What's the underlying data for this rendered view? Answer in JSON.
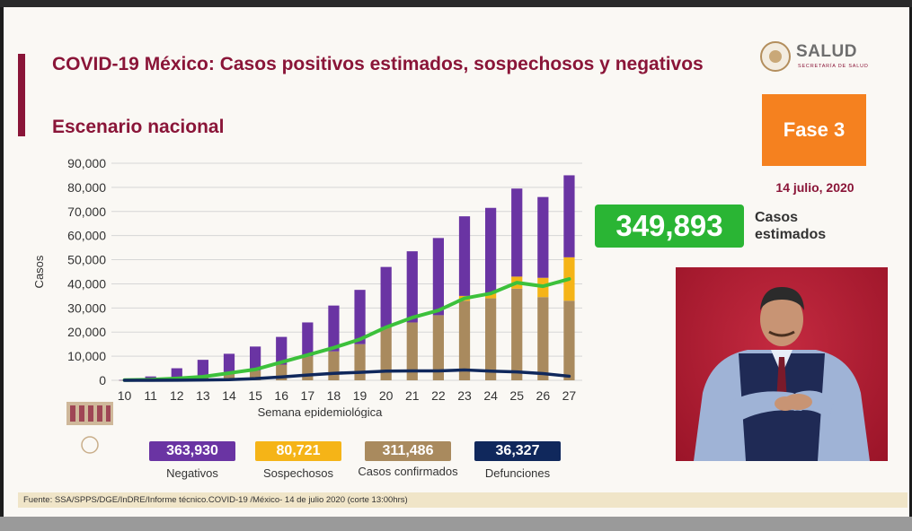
{
  "slide": {
    "title": "COVID-19 México: Casos positivos estimados, sospechosos y negativos",
    "subtitle": "Escenario nacional",
    "logo_text": "SALUD",
    "logo_subtext": "SECRETARÍA DE SALUD",
    "phase": "Fase 3",
    "date": "14 julio, 2020",
    "estimated_value": "349,893",
    "estimated_label": "Casos estimados",
    "source": "Fuente: SSA/SPPS/DGE/InDRE/Informe técnico.COVID-19 /México- 14 de julio 2020 (corte 13:00hrs)"
  },
  "summary": [
    {
      "value": "363,930",
      "label": "Negativos",
      "color": "#6a34a3"
    },
    {
      "value": "80,721",
      "label": "Sospechosos",
      "color": "#f5b417"
    },
    {
      "value": "311,486",
      "label": "Casos confirmados",
      "color": "#a98a5e"
    },
    {
      "value": "36,327",
      "label": "Defunciones",
      "color": "#10285c"
    }
  ],
  "colors": {
    "accent": "#8a1538",
    "phase": "#f5811f",
    "estimated": "#2ab534",
    "negativos": "#6a34a3",
    "sospechosos": "#f5b417",
    "confirmados": "#a98a5e",
    "defunciones": "#10285c",
    "estimados_line": "#3cc13b"
  },
  "chart_data": {
    "type": "bar",
    "stacked": true,
    "xlabel": "Semana epidemiológica",
    "ylabel": "Casos",
    "ylim": [
      0,
      90000
    ],
    "yticks": [
      0,
      10000,
      20000,
      30000,
      40000,
      50000,
      60000,
      70000,
      80000,
      90000
    ],
    "ytick_labels": [
      "0",
      "10,000",
      "20,000",
      "30,000",
      "40,000",
      "50,000",
      "60,000",
      "70,000",
      "80,000",
      "90,000"
    ],
    "grid": true,
    "categories": [
      "10",
      "11",
      "12",
      "13",
      "14",
      "15",
      "16",
      "17",
      "18",
      "19",
      "20",
      "21",
      "22",
      "23",
      "24",
      "25",
      "26",
      "27"
    ],
    "series": [
      {
        "name": "Casos confirmados",
        "values": [
          30,
          300,
          800,
          2000,
          3500,
          4000,
          6500,
          10000,
          12000,
          15000,
          22000,
          24000,
          27000,
          33000,
          34000,
          38000,
          34500,
          33000
        ]
      },
      {
        "name": "Sospechosos",
        "values": [
          0,
          0,
          0,
          0,
          0,
          0,
          0,
          0,
          0,
          0,
          0,
          0,
          0,
          2000,
          2000,
          5000,
          8000,
          18000
        ]
      },
      {
        "name": "Negativos",
        "values": [
          100,
          1300,
          4200,
          6500,
          7500,
          10000,
          11500,
          14000,
          19000,
          22500,
          25000,
          29500,
          32000,
          33000,
          35500,
          36500,
          33500,
          34000
        ]
      }
    ],
    "lines": [
      {
        "name": "Casos estimados",
        "values": [
          100,
          300,
          800,
          1500,
          3000,
          4500,
          7500,
          10500,
          13500,
          17000,
          22000,
          26000,
          29000,
          34000,
          36000,
          40500,
          39000,
          42000
        ]
      },
      {
        "name": "Defunciones",
        "values": [
          0,
          0,
          50,
          150,
          300,
          700,
          1400,
          2200,
          2900,
          3300,
          3800,
          3900,
          3900,
          4300,
          3800,
          3500,
          2800,
          1700
        ]
      }
    ]
  }
}
